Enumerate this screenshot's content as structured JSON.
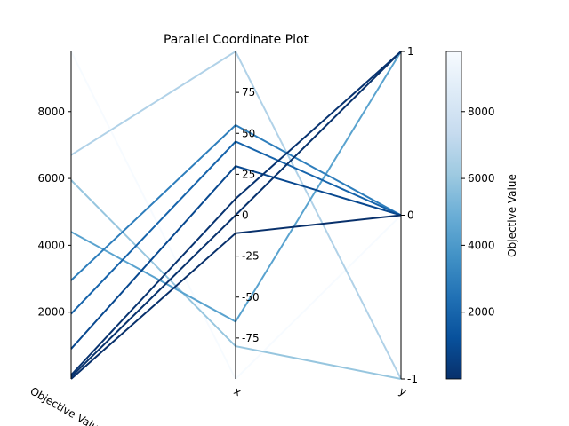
{
  "chart_data": {
    "type": "parallel_coordinates",
    "title": "Parallel Coordinate Plot",
    "axes": [
      {
        "name": "Objective Value",
        "range": [
          0,
          9800
        ],
        "ticks": [
          2000,
          4000,
          6000,
          8000
        ]
      },
      {
        "name": "x",
        "range": [
          -100,
          100
        ],
        "ticks": [
          75,
          50,
          25,
          0,
          -25,
          -50,
          -75
        ]
      },
      {
        "name": "y",
        "range": [
          -1,
          1
        ],
        "ticks": [
          1,
          0,
          -1
        ]
      }
    ],
    "lines": [
      {
        "objective": 9800,
        "x": -100,
        "y": 0
      },
      {
        "objective": 6700,
        "x": 100,
        "y": -1
      },
      {
        "objective": 5950,
        "x": -80,
        "y": -1
      },
      {
        "objective": 4400,
        "x": -65,
        "y": 1
      },
      {
        "objective": 2950,
        "x": 55,
        "y": 0
      },
      {
        "objective": 1950,
        "x": 45,
        "y": 0
      },
      {
        "objective": 900,
        "x": 30,
        "y": 0
      },
      {
        "objective": 120,
        "x": 10,
        "y": 1
      },
      {
        "objective": 60,
        "x": 0,
        "y": 1
      },
      {
        "objective": 0,
        "x": -11,
        "y": 0
      }
    ],
    "colorbar": {
      "label": "Objective Value",
      "range": [
        0,
        9800
      ],
      "ticks": [
        2000,
        4000,
        6000,
        8000
      ],
      "colormap": "Blues_r",
      "colors": [
        "#08306b",
        "#08519c",
        "#2171b5",
        "#4292c6",
        "#6baed6",
        "#9ecae1",
        "#c6dbef",
        "#deebf7",
        "#f7fbff"
      ]
    }
  }
}
